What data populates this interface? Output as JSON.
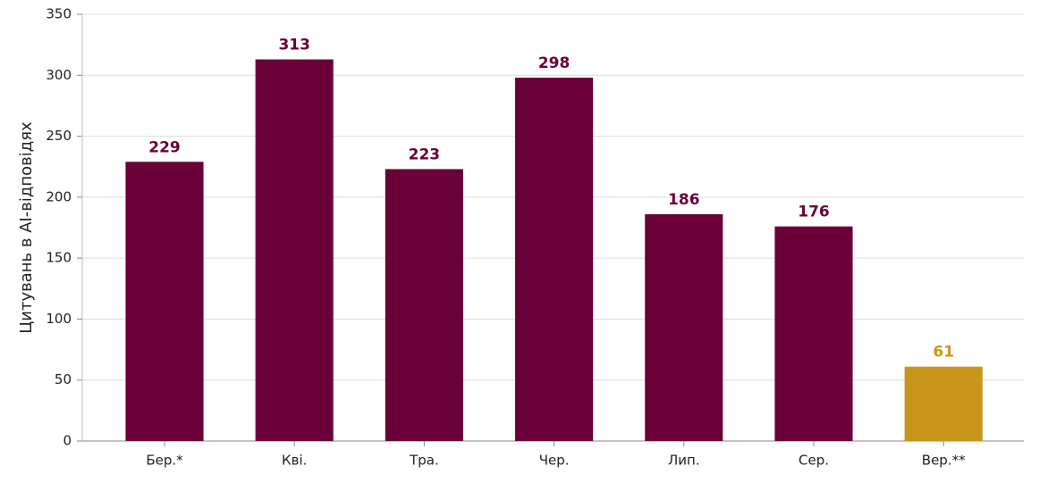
{
  "chart_data": {
    "type": "bar",
    "y_label": "Цитувань в AI-відповідях",
    "categories": [
      "Бер.*",
      "Кві.",
      "Тра.",
      "Чер.",
      "Лип.",
      "Сер.",
      "Вер.**"
    ],
    "values": [
      229,
      313,
      223,
      298,
      186,
      176,
      61
    ],
    "colors": [
      "#6a0037",
      "#6a0037",
      "#6a0037",
      "#6a0037",
      "#6a0037",
      "#6a0037",
      "#c9961c"
    ],
    "ylim": [
      0,
      350
    ],
    "yticks": [
      0,
      50,
      100,
      150,
      200,
      250,
      300,
      350
    ],
    "grid": true
  }
}
